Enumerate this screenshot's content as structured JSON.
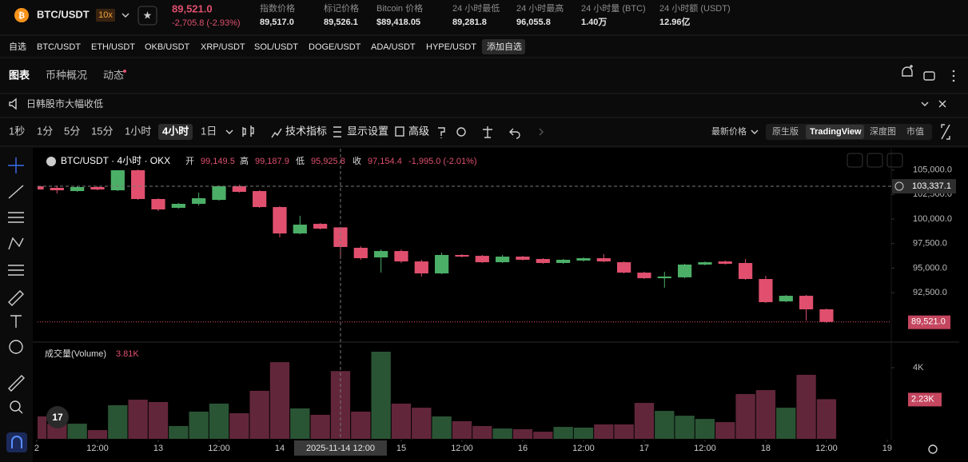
{
  "header": {
    "symbol": "BTC/USDT",
    "leverage": "10x",
    "price": "89,521.0",
    "change": "-2,705.8 (-2.93%)",
    "stats": [
      {
        "label": "指数价格",
        "value": "89,517.0"
      },
      {
        "label": "标记价格",
        "value": "89,526.1"
      },
      {
        "label": "Bitcoin 价格",
        "value": "$89,418.05"
      },
      {
        "label": "24 小时最低",
        "value": "89,281.8"
      },
      {
        "label": "24 小时最高",
        "value": "96,055.8"
      },
      {
        "label": "24 小时量 (BTC)",
        "value": "1.40万"
      },
      {
        "label": "24 小时额 (USDT)",
        "value": "12.96亿"
      }
    ]
  },
  "pairs": [
    "自选",
    "BTC/USDT",
    "ETH/USDT",
    "OKB/USDT",
    "XRP/USDT",
    "SOL/USDT",
    "DOGE/USDT",
    "ADA/USDT",
    "HYPE/USDT",
    "添加自选"
  ],
  "tabs": [
    "图表",
    "币种概况",
    "动态"
  ],
  "notice": "日韩股市大幅收低",
  "intervals": [
    "1秒",
    "1分",
    "5分",
    "15分",
    "1小时",
    "4小时",
    "1日"
  ],
  "tools": [
    "技术指标",
    "显示设置",
    "高级"
  ],
  "price_type": "最新价格",
  "views": [
    "原生版",
    "TradingView",
    "深度图",
    "市值"
  ],
  "chart_data": {
    "type": "candlestick",
    "title": "BTC/USDT · 4小时 · OKX",
    "legend": {
      "open_label": "开",
      "open": "99,149.5",
      "high_label": "高",
      "high": "99,187.9",
      "low_label": "低",
      "low": "95,925.8",
      "close_label": "收",
      "close": "97,154.4",
      "change": "-1,995.0 (-2.01%)"
    },
    "xlim": [
      0.04,
      42.2
    ],
    "xticks": [
      {
        "value": 0,
        "label": "2"
      },
      {
        "value": 3,
        "label": "12:00"
      },
      {
        "value": 6,
        "label": "13"
      },
      {
        "value": 9,
        "label": "12:00"
      },
      {
        "value": 12,
        "label": "14"
      },
      {
        "value": 18,
        "label": "15"
      },
      {
        "value": 21,
        "label": "12:00"
      },
      {
        "value": 24,
        "label": "16"
      },
      {
        "value": 27,
        "label": "12:00"
      },
      {
        "value": 30,
        "label": "17"
      },
      {
        "value": 33,
        "label": "12:00"
      },
      {
        "value": 36,
        "label": "18"
      },
      {
        "value": 39,
        "label": "12:00"
      },
      {
        "value": 42,
        "label": "19"
      }
    ],
    "crosshair": {
      "x": 15,
      "label": "2025-11-14 12:00"
    },
    "ylim": [
      87460,
      107170
    ],
    "yticks": [
      {
        "value": 92500,
        "label": "92,500.0"
      },
      {
        "value": 95000,
        "label": "95,000.0"
      },
      {
        "value": 97500,
        "label": "97,500.0"
      },
      {
        "value": 100000,
        "label": "100,000.0"
      },
      {
        "value": 102500,
        "label": "102,500.0"
      },
      {
        "value": 105000,
        "label": "105,000.0"
      }
    ],
    "open": [
      103340,
      103180,
      102850,
      103260,
      102930,
      104970,
      102040,
      101140,
      101550,
      101950,
      103340,
      102850,
      101220,
      98530,
      99510,
      99149.5,
      97070,
      96090,
      96740,
      95680,
      94460,
      96340,
      96250,
      95600,
      96170,
      95930,
      95520,
      95770,
      96010,
      95600,
      94540,
      93970,
      94060,
      95360,
      95680,
      95520,
      93890,
      91610,
      92180,
      90800
    ],
    "high": [
      103420,
      103420,
      103340,
      103340,
      104970,
      105050,
      102120,
      101630,
      102690,
      103420,
      103500,
      102930,
      101300,
      100330,
      99590,
      99187.9,
      97230,
      96900,
      96900,
      95850,
      96580,
      96420,
      96340,
      96340,
      96250,
      96010,
      95930,
      96090,
      96420,
      95680,
      94630,
      94630,
      95440,
      95680,
      95770,
      95930,
      94220,
      92260,
      92260,
      90880
    ],
    "low": [
      102930,
      102610,
      102770,
      102930,
      102850,
      101950,
      100810,
      101060,
      101380,
      101870,
      102690,
      101140,
      98130,
      98450,
      98940,
      95925.8,
      95850,
      94540,
      95520,
      94140,
      94380,
      96090,
      95520,
      95520,
      95770,
      95440,
      95440,
      95680,
      95600,
      94460,
      93890,
      93000,
      93970,
      95280,
      95360,
      93810,
      91450,
      91530,
      89660,
      89410
    ],
    "close": [
      103010,
      102930,
      103260,
      103010,
      104970,
      102040,
      100980,
      101550,
      102120,
      103340,
      102770,
      101220,
      98530,
      99430,
      99020,
      97154.4,
      96010,
      96740,
      95680,
      94460,
      96340,
      96170,
      95600,
      96170,
      95850,
      95520,
      95850,
      96010,
      95680,
      94540,
      93970,
      94140,
      95360,
      95600,
      95440,
      93890,
      91530,
      92180,
      90800,
      89521
    ],
    "up_color": "#4caf67",
    "down_color": "#e0506e",
    "crosshair_price": {
      "value": 103337.1,
      "label": "103,337.1"
    },
    "last_price": {
      "value": 89521.0,
      "label": "89,521.0"
    },
    "volume": {
      "title": "成交量(Volume)",
      "value_label": "3.81K",
      "last_label": "2.23K",
      "values": [
        1260,
        850,
        850,
        490,
        1890,
        2200,
        2070,
        720,
        1530,
        1980,
        1440,
        2700,
        4310,
        1710,
        1350,
        3810,
        1530,
        4900,
        1980,
        1750,
        1260,
        990,
        720,
        580,
        540,
        400,
        670,
        630,
        810,
        810,
        2020,
        1570,
        1300,
        1120,
        940,
        2520,
        2740,
        1750,
        3600,
        2230
      ],
      "ylim": [
        0,
        5350
      ],
      "yticks": [
        {
          "value": 4000,
          "label": "4K"
        }
      ],
      "up_color": "#2a5535",
      "down_color": "#62263a"
    }
  }
}
